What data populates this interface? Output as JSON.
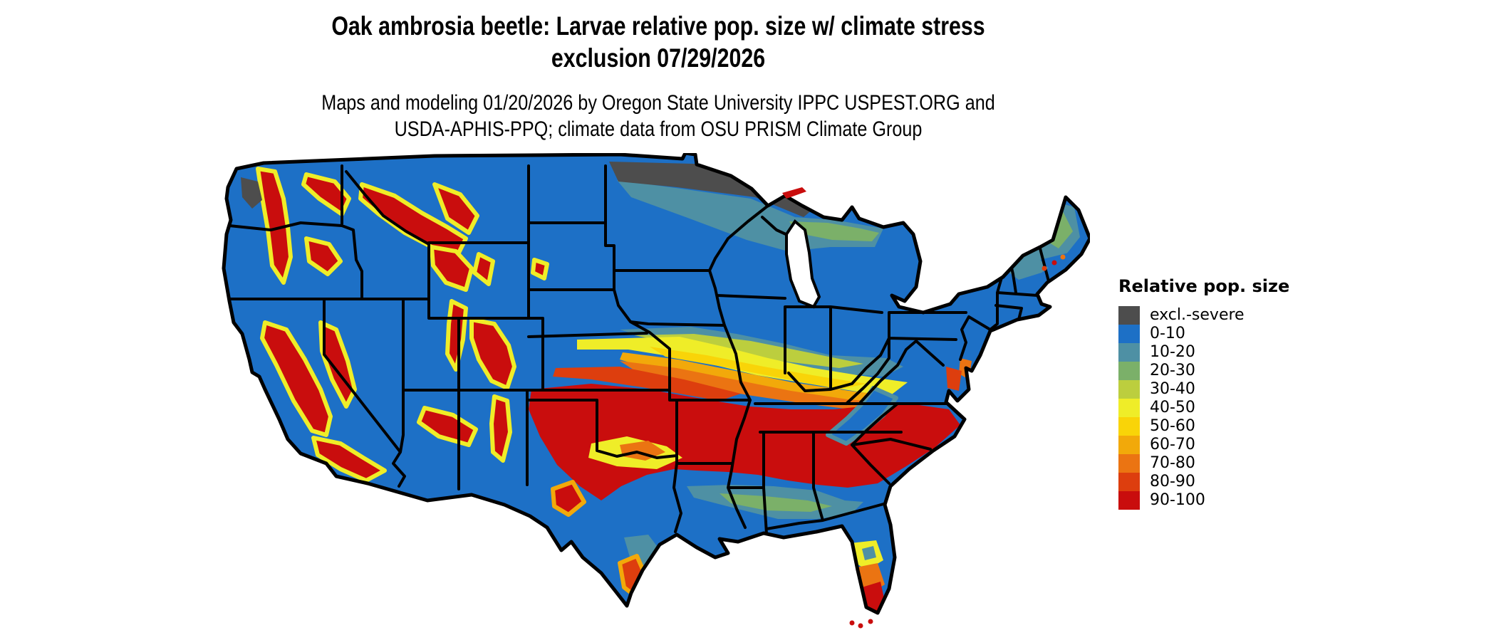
{
  "header": {
    "title_line1": "Oak ambrosia beetle: Larvae relative pop. size w/ climate stress",
    "title_line2": "exclusion 07/29/2026",
    "subtitle_line1": "Maps and modeling 01/20/2026 by Oregon State University IPPC USPEST.ORG and",
    "subtitle_line2": "USDA-APHIS-PPQ; climate data from OSU PRISM Climate Group"
  },
  "legend": {
    "title": "Relative pop. size",
    "items": [
      {
        "key": "excl",
        "label": "excl.-severe",
        "color": "#4D4D4D"
      },
      {
        "key": "b0",
        "label": "0-10",
        "color": "#1D70C6"
      },
      {
        "key": "b1",
        "label": "10-20",
        "color": "#4E90A4"
      },
      {
        "key": "b2",
        "label": "20-30",
        "color": "#7BB069"
      },
      {
        "key": "b3",
        "label": "30-40",
        "color": "#BCCE3E"
      },
      {
        "key": "b4",
        "label": "40-50",
        "color": "#EFED28"
      },
      {
        "key": "b5",
        "label": "50-60",
        "color": "#F9D408"
      },
      {
        "key": "b6",
        "label": "60-70",
        "color": "#F2A90A"
      },
      {
        "key": "b7",
        "label": "70-80",
        "color": "#EB7412"
      },
      {
        "key": "b8",
        "label": "80-90",
        "color": "#DD3E0E"
      },
      {
        "key": "b9",
        "label": "90-100",
        "color": "#C90D0D"
      }
    ]
  },
  "chart_data": {
    "type": "map",
    "map_kind": "raster choropleth of continental United States with state borders",
    "title": "Oak ambrosia beetle: Larvae relative pop. size w/ climate stress exclusion 07/29/2026",
    "map_date_shown": "07/29/2026",
    "model_run_date": "01/20/2026",
    "variable": "Relative pop. size",
    "classes": [
      "excl.-severe",
      "0-10",
      "10-20",
      "20-30",
      "30-40",
      "40-50",
      "50-60",
      "60-70",
      "70-80",
      "80-90",
      "90-100"
    ],
    "class_colors": [
      "#4D4D4D",
      "#1D70C6",
      "#4E90A4",
      "#7BB069",
      "#BCCE3E",
      "#EFED28",
      "#F9D408",
      "#F2A90A",
      "#EB7412",
      "#DD3E0E",
      "#C90D0D"
    ],
    "visible_patterns": [
      "Northern tier (WA-E, MT-E, ND, SD, NE, MN, WI, MI, NY, PA, OH, IA-N) predominantly 0-10 blue",
      "excl.-severe dark gray band along the northern ND/MN border and Lake Superior arrowhead",
      "Large 90-100 red region across OK, N/W TX, KS-S, MO-S, AR, TN, N MS/AL/GA, SC, NC-E, SE VA and mid-Atlantic coast",
      "Banded transition north of red region: 80-90 through 40-50 then 20-30/10-20 into blue across KS/NE/MO/IA/IL/IN/OH",
      "Mountain ranges in the West (Cascades, Sierra Nevada, CA Central Valley, N Rockies in ID/MT/WY, Wasatch, CO Rockies, Mogollon Rim, NM ranges) shown 90-100 red with 40-60 yellow fringes on blue basins",
      "Gulf Coast and S Texas 0-10/10-20 with 20-30 green strip; S Florida grades yellow-orange-red to the Keys; N Maine 10-30 teal/green; red specks on Maine coast and Isle Royale"
    ],
    "legend_position": "right"
  }
}
